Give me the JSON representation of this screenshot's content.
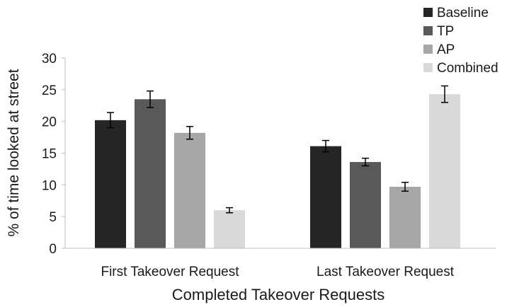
{
  "chart_data": {
    "type": "bar",
    "title": "",
    "xlabel": "Completed Takeover Requests",
    "ylabel": "% of time looked at street",
    "ylim": [
      0,
      30
    ],
    "yticks": [
      0,
      5,
      10,
      15,
      20,
      25,
      30
    ],
    "categories": [
      "First Takeover Request",
      "Last Takeover Request"
    ],
    "series": [
      {
        "name": "Baseline",
        "color": "#262626",
        "values": [
          20.2,
          16.1
        ],
        "errors": [
          1.2,
          0.9
        ]
      },
      {
        "name": "TP",
        "color": "#595959",
        "values": [
          23.5,
          13.6
        ],
        "errors": [
          1.3,
          0.6
        ]
      },
      {
        "name": "AP",
        "color": "#a6a6a6",
        "values": [
          18.2,
          9.7
        ],
        "errors": [
          1.0,
          0.7
        ]
      },
      {
        "name": "Combined",
        "color": "#d9d9d9",
        "values": [
          6.0,
          24.3
        ],
        "errors": [
          0.4,
          1.3
        ]
      }
    ],
    "legend_position": "top-right",
    "grid": false,
    "error_bars": true
  }
}
